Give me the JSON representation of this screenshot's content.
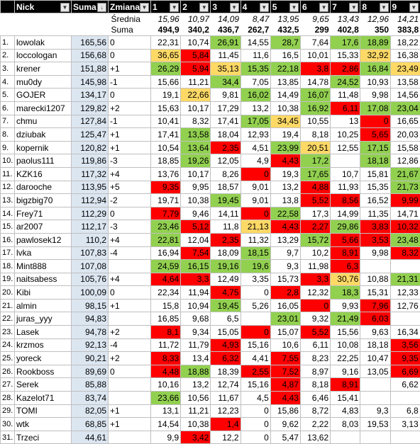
{
  "header": {
    "avg_label": "Średnia",
    "sum_label": "Suma",
    "averages": [
      "15,96",
      "10,97",
      "14,09",
      "8,47",
      "13,95",
      "9,65",
      "13,43",
      "12,96",
      "14,21"
    ],
    "sums": [
      "494,9",
      "340,2",
      "436,7",
      "262,7",
      "432,5",
      "299",
      "402,8",
      "350",
      "383,8"
    ],
    "columns": [
      "Nick",
      "Suma",
      "Zmiana",
      "1",
      "2",
      "3",
      "4",
      "5",
      "6",
      "7",
      "8",
      "9"
    ]
  },
  "rows": [
    {
      "rank": "1.",
      "nick": "lowolak",
      "suma": "165,56",
      "zm": "0",
      "v": [
        "22,31",
        "10,74",
        "26,91",
        "14,55",
        "28,7",
        "7,64",
        "17,6",
        "18,89",
        "18,22"
      ],
      "c": [
        "",
        "",
        "g",
        "",
        "g",
        "",
        "g",
        "g",
        ""
      ]
    },
    {
      "rank": "2.",
      "nick": "loccologan",
      "suma": "156,68",
      "zm": "0",
      "v": [
        "36,65",
        "5,84",
        "11,45",
        "11,6",
        "16,5",
        "10,01",
        "15,33",
        "32,92",
        "16,38"
      ],
      "c": [
        "y",
        "r",
        "",
        "",
        "",
        "",
        "",
        "y",
        ""
      ]
    },
    {
      "rank": "3.",
      "nick": "krener",
      "suma": "151,88",
      "zm": "+1",
      "v": [
        "26,29",
        "5,94",
        "35,13",
        "15,35",
        "22,18",
        "3,8",
        "2,86",
        "16,84",
        "23,49"
      ],
      "c": [
        "g",
        "r",
        "y",
        "g",
        "g",
        "r",
        "r",
        "g",
        "y"
      ]
    },
    {
      "rank": "4.",
      "nick": "mu0dy",
      "suma": "145,98",
      "zm": "-1",
      "v": [
        "15,66",
        "11,21",
        "34,4",
        "7,05",
        "13,85",
        "14,78",
        "24,52",
        "10,93",
        "13,58"
      ],
      "c": [
        "",
        "",
        "g",
        "",
        "",
        "",
        "g",
        "",
        ""
      ]
    },
    {
      "rank": "5.",
      "nick": "GOJER",
      "suma": "134,17",
      "zm": "0",
      "v": [
        "19,1",
        "22,66",
        "9,81",
        "16,02",
        "14,49",
        "16,07",
        "11,48",
        "9,98",
        "14,56"
      ],
      "c": [
        "",
        "y",
        "",
        "g",
        "",
        "g",
        "",
        "",
        ""
      ]
    },
    {
      "rank": "6.",
      "nick": "marecki1207",
      "suma": "129,82",
      "zm": "+2",
      "v": [
        "15,63",
        "10,17",
        "17,29",
        "13,2",
        "10,38",
        "16,92",
        "6,11",
        "17,08",
        "23,04"
      ],
      "c": [
        "",
        "",
        "",
        "",
        "",
        "g",
        "r",
        "g",
        "g"
      ]
    },
    {
      "rank": "7.",
      "nick": "chmu",
      "suma": "127,84",
      "zm": "-1",
      "v": [
        "10,41",
        "8,32",
        "17,41",
        "17,05",
        "34,45",
        "10,55",
        "13",
        "0",
        "16,65"
      ],
      "c": [
        "",
        "",
        "",
        "g",
        "y",
        "",
        "",
        "r",
        ""
      ]
    },
    {
      "rank": "8.",
      "nick": "dziubak",
      "suma": "125,47",
      "zm": "+1",
      "v": [
        "17,41",
        "13,58",
        "18,04",
        "12,93",
        "19,4",
        "8,18",
        "10,25",
        "5,65",
        "20,03"
      ],
      "c": [
        "",
        "g",
        "",
        "",
        "",
        "",
        "",
        "r",
        ""
      ]
    },
    {
      "rank": "9.",
      "nick": "kopernik",
      "suma": "120,82",
      "zm": "+1",
      "v": [
        "10,54",
        "13,64",
        "2,35",
        "4,51",
        "23,99",
        "20,51",
        "12,55",
        "17,15",
        "15,58"
      ],
      "c": [
        "",
        "g",
        "r",
        "",
        "g",
        "y",
        "",
        "g",
        ""
      ]
    },
    {
      "rank": "10.",
      "nick": "paolus111",
      "suma": "119,86",
      "zm": "-3",
      "v": [
        "18,85",
        "19,26",
        "12,05",
        "4,9",
        "4,43",
        "17,2",
        "",
        "18,18",
        "12,86"
      ],
      "c": [
        "",
        "g",
        "",
        "",
        "r",
        "g",
        "",
        "g",
        ""
      ]
    },
    {
      "rank": "11.",
      "nick": "KZK16",
      "suma": "117,32",
      "zm": "+4",
      "v": [
        "13,76",
        "10,17",
        "8,26",
        "0",
        "19,3",
        "17,65",
        "10,7",
        "15,81",
        "21,67"
      ],
      "c": [
        "",
        "",
        "",
        "r",
        "",
        "g",
        "",
        "",
        "g"
      ]
    },
    {
      "rank": "12.",
      "nick": "darooche",
      "suma": "113,95",
      "zm": "+5",
      "v": [
        "9,35",
        "9,95",
        "18,57",
        "9,01",
        "13,2",
        "4,88",
        "11,93",
        "15,35",
        "21,73"
      ],
      "c": [
        "r",
        "",
        "",
        "",
        "",
        "r",
        "",
        "",
        "g"
      ]
    },
    {
      "rank": "13.",
      "nick": "bigzbig70",
      "suma": "112,94",
      "zm": "-2",
      "v": [
        "19,71",
        "10,38",
        "19,45",
        "9,01",
        "13,8",
        "5,52",
        "8,56",
        "16,52",
        "9,99"
      ],
      "c": [
        "",
        "",
        "g",
        "",
        "",
        "r",
        "r",
        "",
        "r"
      ]
    },
    {
      "rank": "14.",
      "nick": "Frey71",
      "suma": "112,29",
      "zm": "0",
      "v": [
        "7,79",
        "9,46",
        "14,11",
        "0",
        "22,58",
        "17,3",
        "14,99",
        "11,35",
        "14,71"
      ],
      "c": [
        "r",
        "",
        "",
        "r",
        "g",
        "",
        "",
        "",
        ""
      ]
    },
    {
      "rank": "15.",
      "nick": "ar2007",
      "suma": "112,17",
      "zm": "-3",
      "v": [
        "23,46",
        "5,12",
        "11,8",
        "21,13",
        "4,43",
        "2,27",
        "29,86",
        "3,83",
        "10,32"
      ],
      "c": [
        "g",
        "r",
        "",
        "y",
        "r",
        "r",
        "g",
        "r",
        "r"
      ]
    },
    {
      "rank": "16.",
      "nick": "pawlosek12",
      "suma": "110,2",
      "zm": "+4",
      "v": [
        "22,81",
        "12,04",
        "2,35",
        "11,32",
        "13,29",
        "15,72",
        "5,66",
        "3,53",
        "23,48"
      ],
      "c": [
        "g",
        "",
        "r",
        "",
        "",
        "g",
        "r",
        "r",
        "g"
      ]
    },
    {
      "rank": "17.",
      "nick": "lvka",
      "suma": "107,83",
      "zm": "-4",
      "v": [
        "16,94",
        "7,54",
        "18,09",
        "18,15",
        "9,7",
        "10,2",
        "8,91",
        "9,98",
        "8,32"
      ],
      "c": [
        "",
        "r",
        "",
        "g",
        "",
        "",
        "r",
        "",
        "r"
      ]
    },
    {
      "rank": "18.",
      "nick": "Mint888",
      "suma": "107,08",
      "zm": "",
      "v": [
        "24,59",
        "16,15",
        "19,16",
        "19,6",
        "9,3",
        "11,98",
        "6,3",
        "",
        ""
      ],
      "c": [
        "g",
        "g",
        "g",
        "g",
        "",
        "",
        "r",
        "",
        ""
      ]
    },
    {
      "rank": "19.",
      "nick": "naitsabess",
      "suma": "105,76",
      "zm": "+4",
      "v": [
        "4,64",
        "3,3",
        "12,49",
        "3,35",
        "15,73",
        "3,3",
        "30,76",
        "10,88",
        "21,31"
      ],
      "c": [
        "r",
        "r",
        "",
        "",
        "",
        "r",
        "y",
        "",
        "g"
      ]
    },
    {
      "rank": "20.",
      "nick": "Kibi",
      "suma": "100,09",
      "zm": "0",
      "v": [
        "22,34",
        "11,94",
        "4,75",
        "0",
        "2,8",
        "12,32",
        "18,3",
        "15,31",
        "12,33"
      ],
      "c": [
        "",
        "",
        "r",
        "",
        "r",
        "",
        "g",
        "",
        ""
      ]
    },
    {
      "rank": "21.",
      "nick": "almin",
      "suma": "98,15",
      "zm": "+1",
      "v": [
        "15,8",
        "10,94",
        "19,45",
        "5,26",
        "16,05",
        "0",
        "9,93",
        "7,96",
        "12,76"
      ],
      "c": [
        "",
        "",
        "g",
        "",
        "",
        "r",
        "",
        "r",
        ""
      ]
    },
    {
      "rank": "22.",
      "nick": "juras_yyy",
      "suma": "94,83",
      "zm": "",
      "v": [
        "16,85",
        "9,68",
        "6,5",
        "",
        "23,01",
        "9,32",
        "21,49",
        "6,03",
        ""
      ],
      "c": [
        "",
        "",
        "",
        "",
        "g",
        "",
        "g",
        "r",
        ""
      ]
    },
    {
      "rank": "23.",
      "nick": "Lasek",
      "suma": "94,78",
      "zm": "+2",
      "v": [
        "8,1",
        "9,34",
        "15,05",
        "0",
        "15,07",
        "5,52",
        "15,56",
        "9,63",
        "16,34"
      ],
      "c": [
        "r",
        "",
        "",
        "r",
        "",
        "r",
        "",
        "",
        ""
      ]
    },
    {
      "rank": "24.",
      "nick": "krzmos",
      "suma": "92,13",
      "zm": "-4",
      "v": [
        "11,72",
        "11,79",
        "4,93",
        "15,16",
        "10,6",
        "6,11",
        "10,08",
        "18,18",
        "3,56"
      ],
      "c": [
        "",
        "",
        "r",
        "",
        "",
        "",
        "",
        "",
        "r"
      ]
    },
    {
      "rank": "25.",
      "nick": "yoreck",
      "suma": "90,21",
      "zm": "+2",
      "v": [
        "8,33",
        "13,4",
        "6,32",
        "4,41",
        "7,55",
        "8,23",
        "22,25",
        "10,47",
        "9,35"
      ],
      "c": [
        "r",
        "",
        "r",
        "",
        "r",
        "",
        "",
        "",
        "r"
      ]
    },
    {
      "rank": "26.",
      "nick": "Rookboss",
      "suma": "89,69",
      "zm": "0",
      "v": [
        "4,48",
        "18,88",
        "18,39",
        "2,55",
        "7,52",
        "8,97",
        "9,16",
        "13,05",
        "6,69"
      ],
      "c": [
        "r",
        "g",
        "",
        "r",
        "r",
        "",
        "",
        "",
        "r"
      ]
    },
    {
      "rank": "27.",
      "nick": "Serek",
      "suma": "85,88",
      "zm": "",
      "v": [
        "10,16",
        "13,2",
        "12,74",
        "15,16",
        "4,87",
        "8,18",
        "8,91",
        "",
        "6,62"
      ],
      "c": [
        "",
        "",
        "",
        "",
        "r",
        "",
        "r",
        "",
        ""
      ]
    },
    {
      "rank": "28.",
      "nick": "Kazelot71",
      "suma": "83,74",
      "zm": "",
      "v": [
        "23,66",
        "10,56",
        "11,67",
        "4,5",
        "4,43",
        "6,46",
        "15,41",
        "",
        ""
      ],
      "c": [
        "g",
        "",
        "",
        "",
        "r",
        "",
        "",
        "",
        ""
      ]
    },
    {
      "rank": "29.",
      "nick": "TOMI",
      "suma": "82,05",
      "zm": "+1",
      "v": [
        "13,1",
        "11,21",
        "12,23",
        "0",
        "15,86",
        "8,72",
        "4,83",
        "9,3",
        "6,8"
      ],
      "c": [
        "",
        "",
        "",
        "",
        "",
        "",
        "",
        "",
        ""
      ]
    },
    {
      "rank": "30.",
      "nick": "wtk",
      "suma": "68,85",
      "zm": "+1",
      "v": [
        "14,54",
        "10,38",
        "1,4",
        "0",
        "9,62",
        "2,22",
        "8,03",
        "19,53",
        "3,13"
      ],
      "c": [
        "",
        "",
        "r",
        "",
        "",
        "",
        "",
        "",
        ""
      ]
    },
    {
      "rank": "31.",
      "nick": "Trzeci",
      "suma": "44,61",
      "zm": "",
      "v": [
        "9,9",
        "3,42",
        "12,2",
        "0",
        "5,47",
        "13,62",
        "",
        "",
        ""
      ],
      "c": [
        "",
        "r",
        "",
        "",
        "",
        "",
        "",
        "",
        ""
      ]
    }
  ]
}
